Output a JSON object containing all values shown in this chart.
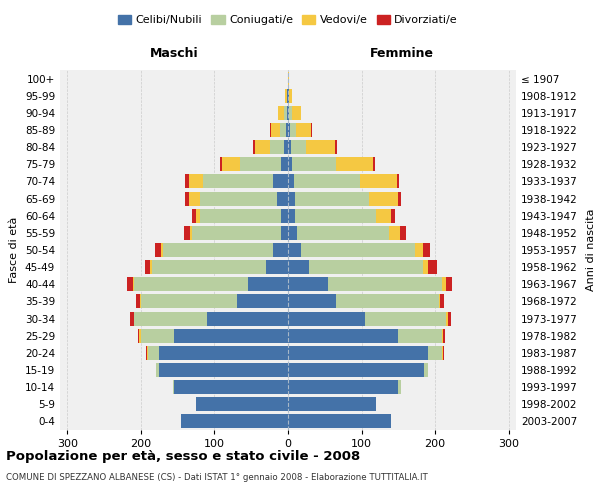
{
  "age_groups": [
    "0-4",
    "5-9",
    "10-14",
    "15-19",
    "20-24",
    "25-29",
    "30-34",
    "35-39",
    "40-44",
    "45-49",
    "50-54",
    "55-59",
    "60-64",
    "65-69",
    "70-74",
    "75-79",
    "80-84",
    "85-89",
    "90-94",
    "95-99",
    "100+"
  ],
  "birth_years": [
    "2003-2007",
    "1998-2002",
    "1993-1997",
    "1988-1992",
    "1983-1987",
    "1978-1982",
    "1973-1977",
    "1968-1972",
    "1963-1967",
    "1958-1962",
    "1953-1957",
    "1948-1952",
    "1943-1947",
    "1938-1942",
    "1933-1937",
    "1928-1932",
    "1923-1927",
    "1918-1922",
    "1913-1917",
    "1908-1912",
    "≤ 1907"
  ],
  "male_celibi": [
    145,
    125,
    155,
    175,
    175,
    155,
    110,
    70,
    55,
    30,
    20,
    10,
    10,
    15,
    20,
    10,
    5,
    3,
    2,
    1,
    0
  ],
  "male_coniugati": [
    0,
    0,
    2,
    5,
    15,
    45,
    100,
    130,
    155,
    155,
    150,
    120,
    110,
    105,
    95,
    55,
    20,
    8,
    3,
    1,
    0
  ],
  "male_vedovi": [
    0,
    0,
    0,
    0,
    2,
    2,
    0,
    1,
    1,
    2,
    3,
    3,
    5,
    15,
    20,
    25,
    20,
    12,
    8,
    2,
    0
  ],
  "male_divorziati": [
    0,
    0,
    0,
    0,
    1,
    2,
    5,
    5,
    8,
    8,
    8,
    8,
    5,
    5,
    5,
    3,
    2,
    2,
    0,
    0,
    0
  ],
  "female_celibi": [
    140,
    120,
    150,
    185,
    190,
    150,
    105,
    65,
    55,
    28,
    18,
    12,
    10,
    10,
    8,
    5,
    4,
    3,
    2,
    1,
    0
  ],
  "female_coniugati": [
    0,
    0,
    3,
    5,
    20,
    60,
    110,
    140,
    155,
    155,
    155,
    125,
    110,
    100,
    90,
    60,
    20,
    8,
    4,
    1,
    0
  ],
  "female_vedovi": [
    0,
    0,
    0,
    0,
    1,
    1,
    2,
    2,
    5,
    8,
    10,
    15,
    20,
    40,
    50,
    50,
    40,
    20,
    12,
    3,
    1
  ],
  "female_divorziati": [
    0,
    0,
    0,
    0,
    1,
    3,
    5,
    5,
    8,
    12,
    10,
    8,
    5,
    3,
    3,
    3,
    2,
    1,
    0,
    0,
    0
  ],
  "color_celibi": "#4472a8",
  "color_coniugati": "#b8cfa0",
  "color_vedovi": "#f5c842",
  "color_divorziati": "#cc2222",
  "title": "Popolazione per età, sesso e stato civile - 2008",
  "subtitle": "COMUNE DI SPEZZANO ALBANESE (CS) - Dati ISTAT 1° gennaio 2008 - Elaborazione TUTTITALIA.IT",
  "xlabel_left": "Maschi",
  "xlabel_right": "Femmine",
  "ylabel_left": "Fasce di età",
  "ylabel_right": "Anni di nascita",
  "xlim": 310,
  "bg_color": "#f0f0f0",
  "grid_color": "#cccccc"
}
